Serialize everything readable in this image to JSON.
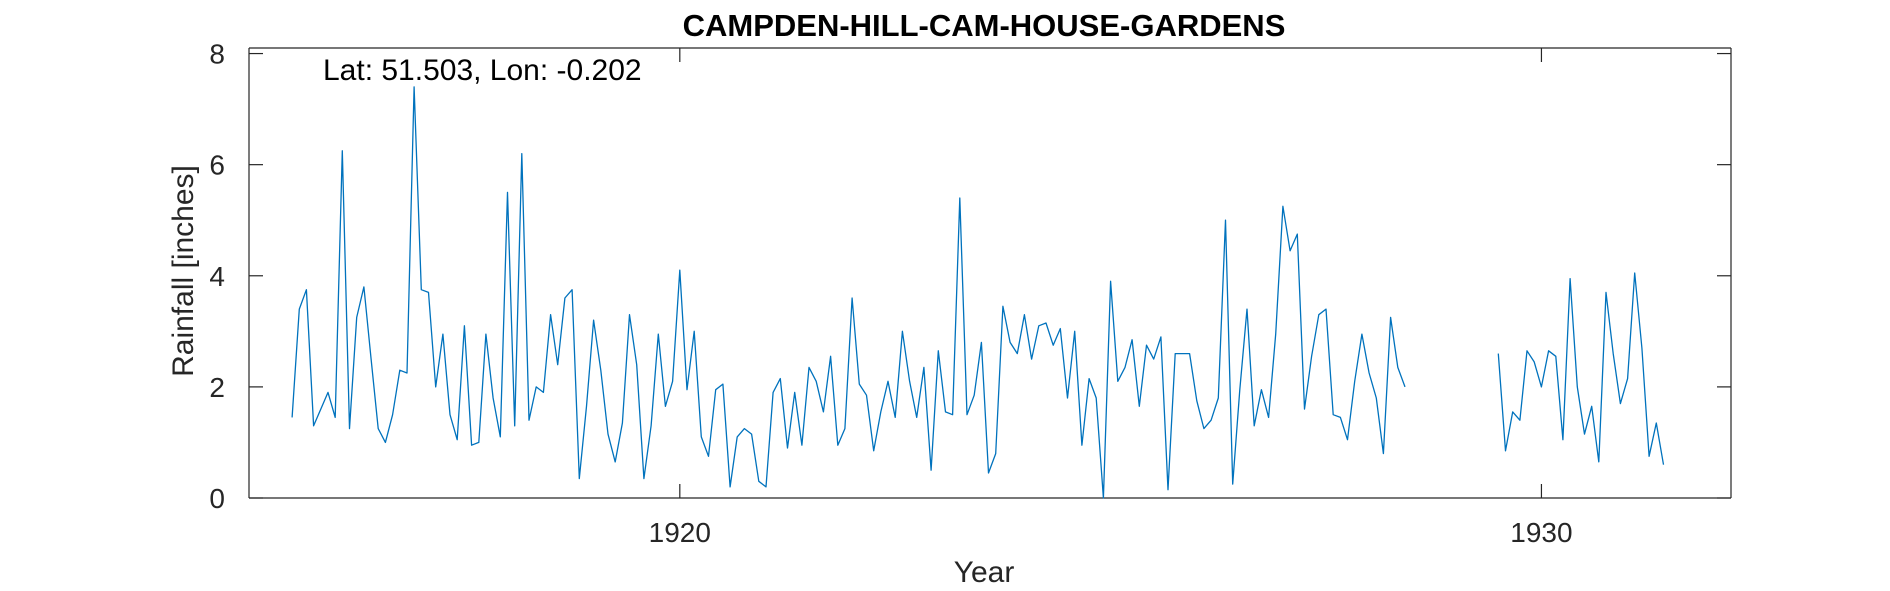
{
  "chart_data": {
    "type": "line",
    "title": "CAMPDEN-HILL-CAM-HOUSE-GARDENS",
    "annotation": "Lat: 51.503, Lon: -0.202",
    "xlabel": "Year",
    "ylabel": "Rainfall [inches]",
    "xlim": [
      1915.0,
      1932.2
    ],
    "ylim": [
      0,
      8.1
    ],
    "xticks": [
      1920,
      1930
    ],
    "xtick_labels": [
      "1920",
      "1930"
    ],
    "yticks": [
      0,
      2,
      4,
      6,
      8
    ],
    "ytick_labels": [
      "0",
      "2",
      "4",
      "6",
      "8"
    ],
    "grid": false,
    "line_color": "#0072BD",
    "series": [
      {
        "x_start": 1915.5,
        "x_step": 0.08333,
        "segments": [
          {
            "start_index": 0,
            "values": [
              1.45,
              3.4,
              3.75,
              1.3,
              1.6,
              1.9,
              1.45,
              6.25,
              1.25,
              3.25,
              3.8,
              2.5,
              1.25,
              1.0,
              1.5,
              2.3,
              2.25,
              7.4,
              3.75,
              3.7,
              2.0,
              2.95,
              1.5,
              1.05,
              3.1,
              0.95,
              1.0,
              2.95,
              1.8,
              1.1,
              5.5,
              1.3,
              6.2,
              1.4,
              2.0,
              1.9,
              3.3,
              2.4,
              3.6,
              3.75,
              0.35,
              1.65,
              3.2,
              2.3,
              1.15,
              0.65,
              1.35,
              3.3,
              2.4,
              0.35,
              1.3,
              2.95,
              1.65,
              2.1,
              4.1,
              1.95,
              3.0,
              1.1,
              0.75,
              1.95,
              2.05,
              0.2,
              1.1,
              1.25,
              1.15,
              0.3,
              0.2,
              1.9,
              2.15,
              0.9,
              1.9,
              0.95,
              2.35,
              2.1,
              1.55,
              2.55,
              0.95,
              1.25,
              3.6,
              2.05,
              1.85,
              0.85,
              1.55,
              2.1,
              1.45,
              3.0,
              2.1,
              1.45,
              2.35,
              0.5,
              2.65,
              1.55,
              1.5,
              5.4,
              1.5,
              1.85,
              2.8,
              0.45,
              0.8,
              3.45,
              2.8,
              2.6,
              3.3,
              2.5,
              3.1,
              3.15,
              2.75,
              3.05,
              1.8,
              3.0,
              0.95,
              2.15,
              1.8,
              0.0,
              3.9,
              2.1,
              2.35,
              2.85,
              1.65,
              2.75,
              2.5,
              2.9,
              0.15,
              2.6,
              2.6,
              2.6,
              1.75,
              1.25,
              1.4,
              1.8,
              5.0,
              0.25,
              1.95,
              3.4,
              1.3,
              1.95,
              1.45,
              2.95,
              5.25,
              4.45,
              4.75,
              1.6,
              2.55,
              3.3,
              3.4,
              1.5,
              1.45,
              1.05,
              2.1,
              2.95,
              2.25,
              1.8,
              0.8,
              3.25,
              2.35,
              2.0
            ]
          },
          {
            "start_index": 168,
            "values": [
              2.6,
              0.85,
              1.55,
              1.4,
              2.65,
              2.45,
              2.0,
              2.65,
              2.55,
              1.05,
              3.95,
              2.0,
              1.15,
              1.65,
              0.65,
              3.7,
              2.6,
              1.7,
              2.15,
              4.05,
              2.7,
              0.75,
              1.35,
              0.6
            ]
          }
        ]
      }
    ]
  }
}
